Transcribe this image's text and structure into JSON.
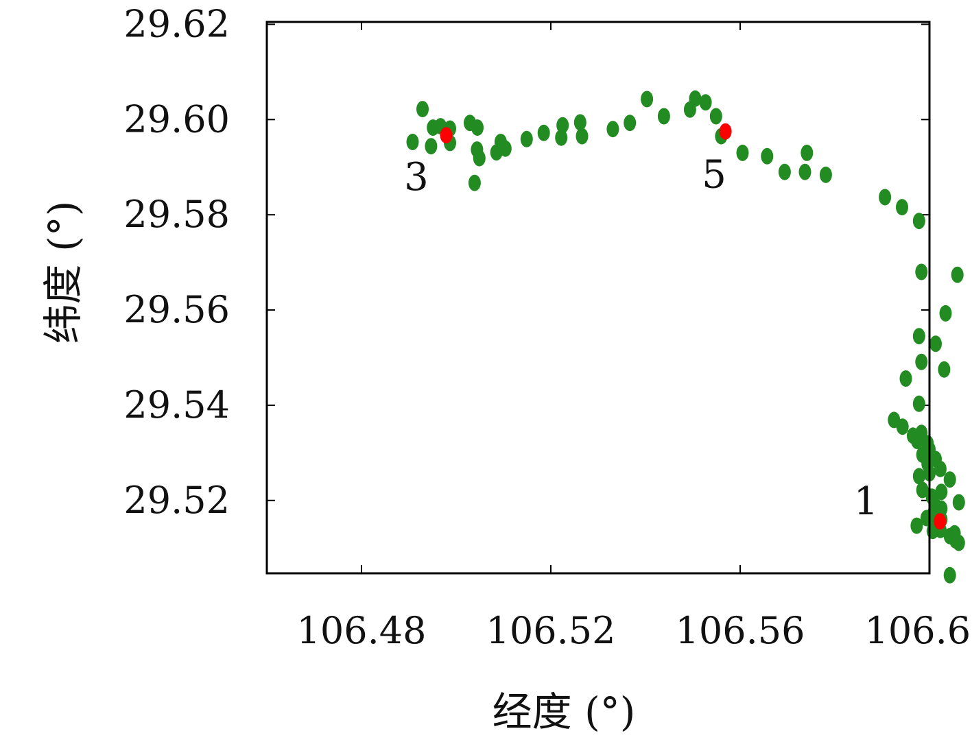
{
  "chart_data": {
    "type": "scatter",
    "xlabel": "经度 (°)",
    "ylabel": "纬度 (°)",
    "xlim": [
      106.46,
      106.6
    ],
    "ylim": [
      29.5047,
      29.6205
    ],
    "xticks": [
      "106.48",
      "106.52",
      "106.56",
      "106.60"
    ],
    "yticks": [
      "29.52",
      "29.54",
      "29.56",
      "29.58",
      "29.60",
      "29.62"
    ],
    "grid": false,
    "colors": {
      "path_points": "#228b22",
      "stops": "#ff0000",
      "axis": "#000000"
    },
    "series": [
      {
        "key": "path",
        "points": [
          [
            106.4929,
            29.6022
          ],
          [
            106.4908,
            29.5953
          ],
          [
            106.4951,
            29.5983
          ],
          [
            106.4967,
            29.5986
          ],
          [
            106.4987,
            29.5981
          ],
          [
            106.4947,
            29.5944
          ],
          [
            106.4987,
            29.5951
          ],
          [
            106.5029,
            29.5993
          ],
          [
            106.5045,
            29.5983
          ],
          [
            106.5044,
            29.5937
          ],
          [
            106.5049,
            29.5919
          ],
          [
            106.5039,
            29.5867
          ],
          [
            106.5085,
            29.5931
          ],
          [
            106.5094,
            29.5953
          ],
          [
            106.5104,
            29.5939
          ],
          [
            106.5149,
            29.5959
          ],
          [
            106.5185,
            29.5972
          ],
          [
            106.5222,
            29.5962
          ],
          [
            106.5225,
            29.5988
          ],
          [
            106.5262,
            29.5994
          ],
          [
            106.5266,
            29.5965
          ],
          [
            106.5331,
            29.598
          ],
          [
            106.5367,
            29.5993
          ],
          [
            106.5403,
            29.6043
          ],
          [
            106.5439,
            29.6007
          ],
          [
            106.5494,
            29.6021
          ],
          [
            106.5505,
            29.6044
          ],
          [
            106.5527,
            29.6036
          ],
          [
            106.5549,
            29.6007
          ],
          [
            106.556,
            29.5965
          ],
          [
            106.5605,
            29.593
          ],
          [
            106.5657,
            29.5923
          ],
          [
            106.5694,
            29.589
          ],
          [
            106.5737,
            29.589
          ],
          [
            106.5741,
            29.593
          ],
          [
            106.5781,
            29.5884
          ],
          [
            106.5906,
            29.5837
          ],
          [
            106.5942,
            29.5816
          ],
          [
            106.5978,
            29.5787
          ],
          [
            106.5983,
            29.568
          ],
          [
            106.6059,
            29.5674
          ],
          [
            106.6034,
            29.5593
          ],
          [
            106.5978,
            29.5545
          ],
          [
            106.6013,
            29.5529
          ],
          [
            106.5983,
            29.5491
          ],
          [
            106.6031,
            29.5475
          ],
          [
            106.595,
            29.5456
          ],
          [
            106.5978,
            29.5403
          ],
          [
            106.5925,
            29.5369
          ],
          [
            106.5943,
            29.5355
          ],
          [
            106.5965,
            29.5336
          ],
          [
            106.5983,
            29.5342
          ],
          [
            106.5974,
            29.5325
          ],
          [
            106.5996,
            29.532
          ],
          [
            106.6,
            29.5307
          ],
          [
            106.5985,
            29.5296
          ],
          [
            106.6013,
            29.5287
          ],
          [
            106.5996,
            29.5277
          ],
          [
            106.6023,
            29.5266
          ],
          [
            106.5978,
            29.5251
          ],
          [
            106.6,
            29.5257
          ],
          [
            106.6043,
            29.5244
          ],
          [
            106.5985,
            29.5222
          ],
          [
            106.6005,
            29.5208
          ],
          [
            106.6025,
            29.5218
          ],
          [
            106.6013,
            29.5188
          ],
          [
            106.6007,
            29.517
          ],
          [
            106.6025,
            29.5183
          ],
          [
            106.6062,
            29.5196
          ],
          [
            106.5994,
            29.5163
          ],
          [
            106.6025,
            29.516
          ],
          [
            106.5973,
            29.5147
          ],
          [
            106.6007,
            29.5136
          ],
          [
            106.6023,
            29.5138
          ],
          [
            106.6043,
            29.5125
          ],
          [
            106.6053,
            29.5131
          ],
          [
            106.6062,
            29.5111
          ],
          [
            106.6055,
            29.5116
          ],
          [
            106.6043,
            29.5043
          ]
        ]
      },
      {
        "key": "stops",
        "points": [
          [
            106.4979,
            29.5967
          ],
          [
            106.5569,
            29.5975
          ],
          [
            106.6022,
            29.5156
          ]
        ]
      }
    ],
    "annotations": [
      {
        "text": "3",
        "x": 106.4916,
        "y": 29.5852
      },
      {
        "text": "5",
        "x": 106.5545,
        "y": 29.5857
      },
      {
        "text": "1",
        "x": 106.5866,
        "y": 29.5171
      }
    ]
  }
}
